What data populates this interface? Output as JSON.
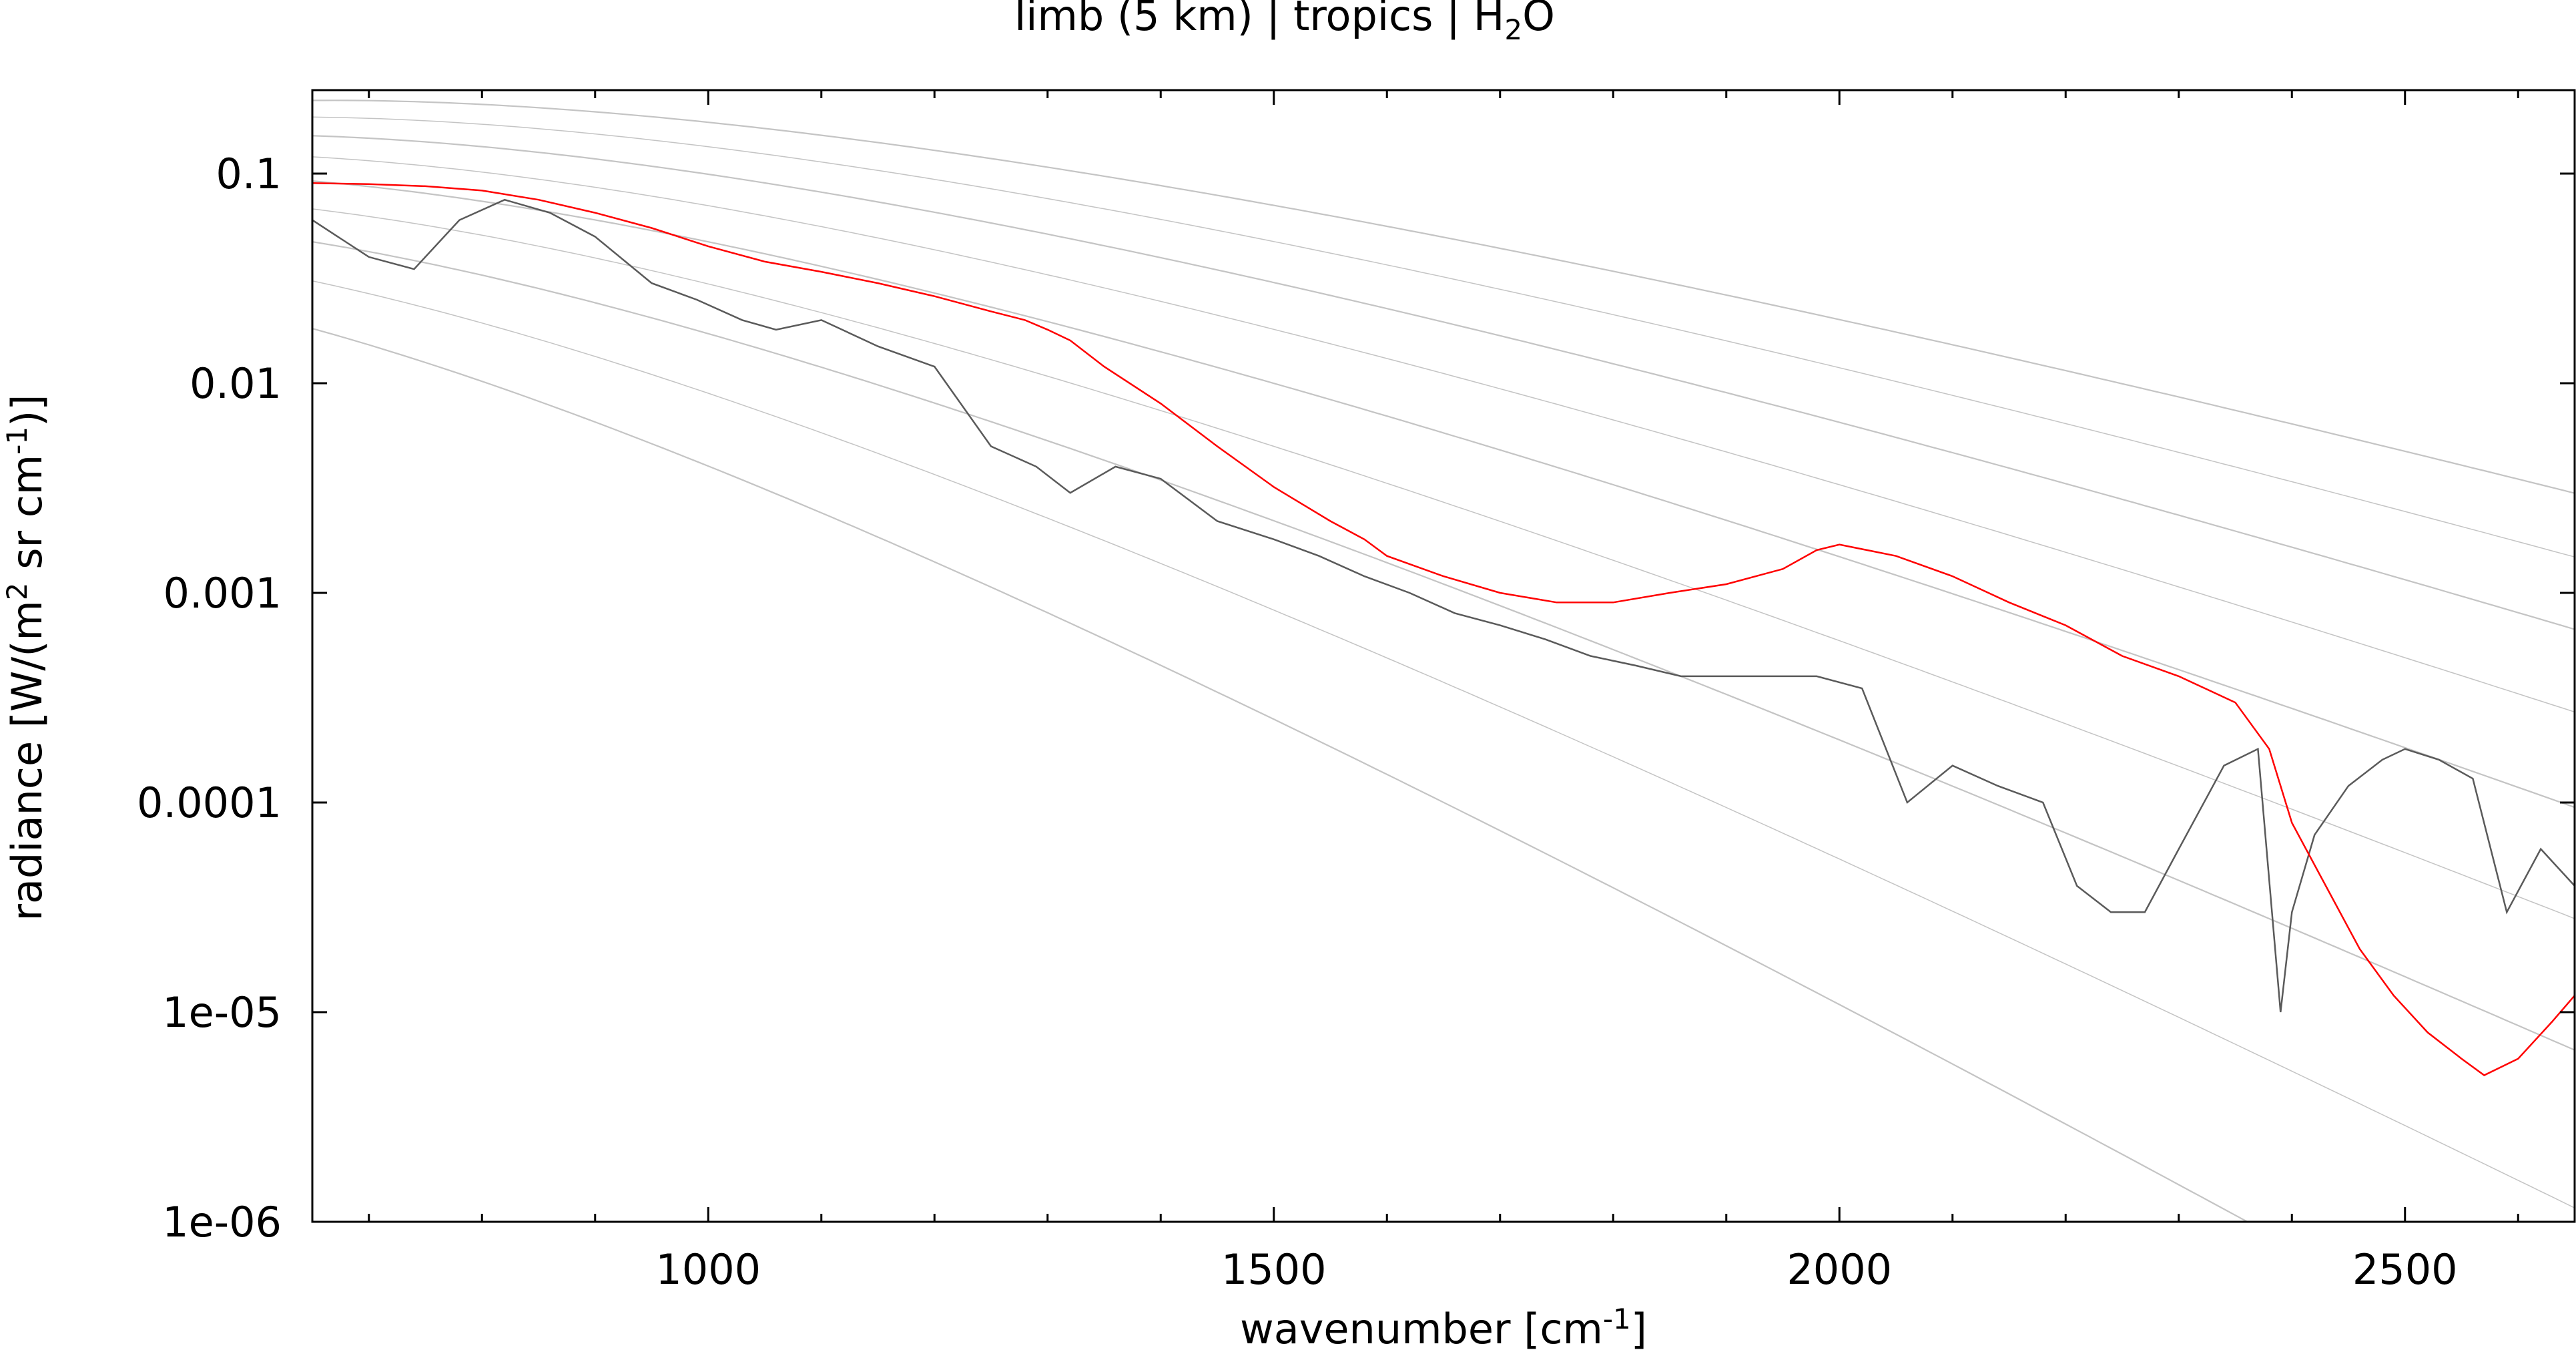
{
  "chart_data": {
    "type": "line",
    "title_prefix": "limb (5 km) | tropics | H",
    "title_sub": "2",
    "title_suffix": "O",
    "xlabel_prefix": "wavenumber [cm",
    "xlabel_sup": "-1",
    "xlabel_suffix": "]",
    "ylabel_p1": "radiance [W/(m",
    "ylabel_sup1": "2",
    "ylabel_p2": " sr cm",
    "ylabel_sup2": "-1",
    "ylabel_p3": ")]",
    "xlim": [
      650,
      2650
    ],
    "ylim": [
      1e-06,
      0.25
    ],
    "yscale": "log",
    "grid": false,
    "x_ticks": [
      {
        "value": 1000,
        "label": "1000"
      },
      {
        "value": 1500,
        "label": "1500"
      },
      {
        "value": 2000,
        "label": "2000"
      },
      {
        "value": 2500,
        "label": "2500"
      }
    ],
    "y_ticks": [
      {
        "value": 0.1,
        "label": "0.1"
      },
      {
        "value": 0.01,
        "label": "0.01"
      },
      {
        "value": 0.001,
        "label": "0.001"
      },
      {
        "value": 0.0001,
        "label": "0.0001"
      },
      {
        "value": 1e-05,
        "label": "1e-05"
      },
      {
        "value": 1e-06,
        "label": "1e-06"
      }
    ],
    "reference_curves": {
      "description_free": true,
      "color": "#b0b0b0",
      "temperatures": [
        180,
        200,
        220,
        240,
        260,
        280,
        300,
        320,
        340
      ]
    },
    "series": [
      {
        "color": "#5a5a5a",
        "x": [
          650,
          700,
          740,
          780,
          820,
          860,
          900,
          950,
          990,
          1030,
          1060,
          1100,
          1150,
          1200,
          1250,
          1290,
          1320,
          1360,
          1400,
          1450,
          1500,
          1540,
          1580,
          1620,
          1660,
          1700,
          1740,
          1780,
          1820,
          1860,
          1900,
          1940,
          1980,
          2020,
          2060,
          2100,
          2140,
          2180,
          2210,
          2240,
          2270,
          2300,
          2340,
          2370,
          2390,
          2400,
          2420,
          2450,
          2480,
          2500,
          2530,
          2560,
          2590,
          2620,
          2650
        ],
        "y": [
          0.06,
          0.04,
          0.035,
          0.06,
          0.075,
          0.065,
          0.05,
          0.03,
          0.025,
          0.02,
          0.018,
          0.02,
          0.015,
          0.012,
          0.005,
          0.004,
          0.003,
          0.004,
          0.0035,
          0.0022,
          0.0018,
          0.0015,
          0.0012,
          0.001,
          0.0008,
          0.0007,
          0.0006,
          0.0005,
          0.00045,
          0.0004,
          0.0004,
          0.0004,
          0.0004,
          0.00035,
          0.0001,
          0.00015,
          0.00012,
          0.0001,
          4e-05,
          3e-05,
          3e-05,
          6e-05,
          0.00015,
          0.00018,
          1e-05,
          3e-05,
          7e-05,
          0.00012,
          0.00016,
          0.00018,
          0.00016,
          0.00013,
          3e-05,
          6e-05,
          4e-05
        ]
      },
      {
        "color": "#ff0000",
        "x": [
          650,
          700,
          750,
          800,
          850,
          900,
          950,
          1000,
          1050,
          1100,
          1150,
          1200,
          1250,
          1280,
          1300,
          1320,
          1350,
          1400,
          1450,
          1500,
          1550,
          1580,
          1600,
          1650,
          1700,
          1750,
          1800,
          1850,
          1900,
          1950,
          1980,
          2000,
          2050,
          2100,
          2150,
          2200,
          2250,
          2300,
          2350,
          2380,
          2400,
          2430,
          2460,
          2490,
          2520,
          2550,
          2570,
          2600,
          2630,
          2650
        ],
        "y": [
          0.09,
          0.089,
          0.087,
          0.083,
          0.075,
          0.065,
          0.055,
          0.045,
          0.038,
          0.034,
          0.03,
          0.026,
          0.022,
          0.02,
          0.018,
          0.016,
          0.012,
          0.008,
          0.005,
          0.0032,
          0.0022,
          0.0018,
          0.0015,
          0.0012,
          0.001,
          0.0009,
          0.0009,
          0.001,
          0.0011,
          0.0013,
          0.0016,
          0.0017,
          0.0015,
          0.0012,
          0.0009,
          0.0007,
          0.0005,
          0.0004,
          0.0003,
          0.00018,
          8e-05,
          4e-05,
          2e-05,
          1.2e-05,
          8e-06,
          6e-06,
          5e-06,
          6e-06,
          9e-06,
          1.2e-05
        ]
      }
    ]
  }
}
